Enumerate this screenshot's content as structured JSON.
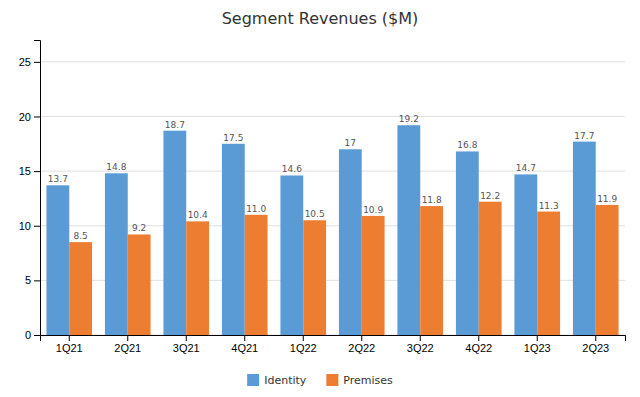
{
  "chart_data": {
    "type": "bar",
    "title": "Segment Revenues ($M)",
    "categories": [
      "1Q21",
      "2Q21",
      "3Q21",
      "4Q21",
      "1Q22",
      "2Q22",
      "3Q22",
      "4Q22",
      "1Q23",
      "2Q23"
    ],
    "series": [
      {
        "name": "Identity",
        "color": "#5B9BD5",
        "values": [
          13.7,
          14.8,
          18.7,
          17.5,
          14.6,
          17,
          19.2,
          16.8,
          14.7,
          17.7
        ]
      },
      {
        "name": "Premises",
        "color": "#ED7D31",
        "values": [
          8.5,
          9.2,
          10.4,
          11.0,
          10.5,
          10.9,
          11.8,
          12.2,
          11.3,
          11.9
        ],
        "value_labels": [
          "8.5",
          "9.2",
          "10.4",
          "11.0",
          "10.5",
          "10.9",
          "11.8",
          "12.2",
          "11.3",
          "11.9"
        ]
      }
    ],
    "ylim": [
      0,
      27
    ],
    "yticks": [
      0,
      5,
      10,
      15,
      20,
      25
    ],
    "grid": true,
    "legend": "bottom",
    "data_labels": true
  }
}
